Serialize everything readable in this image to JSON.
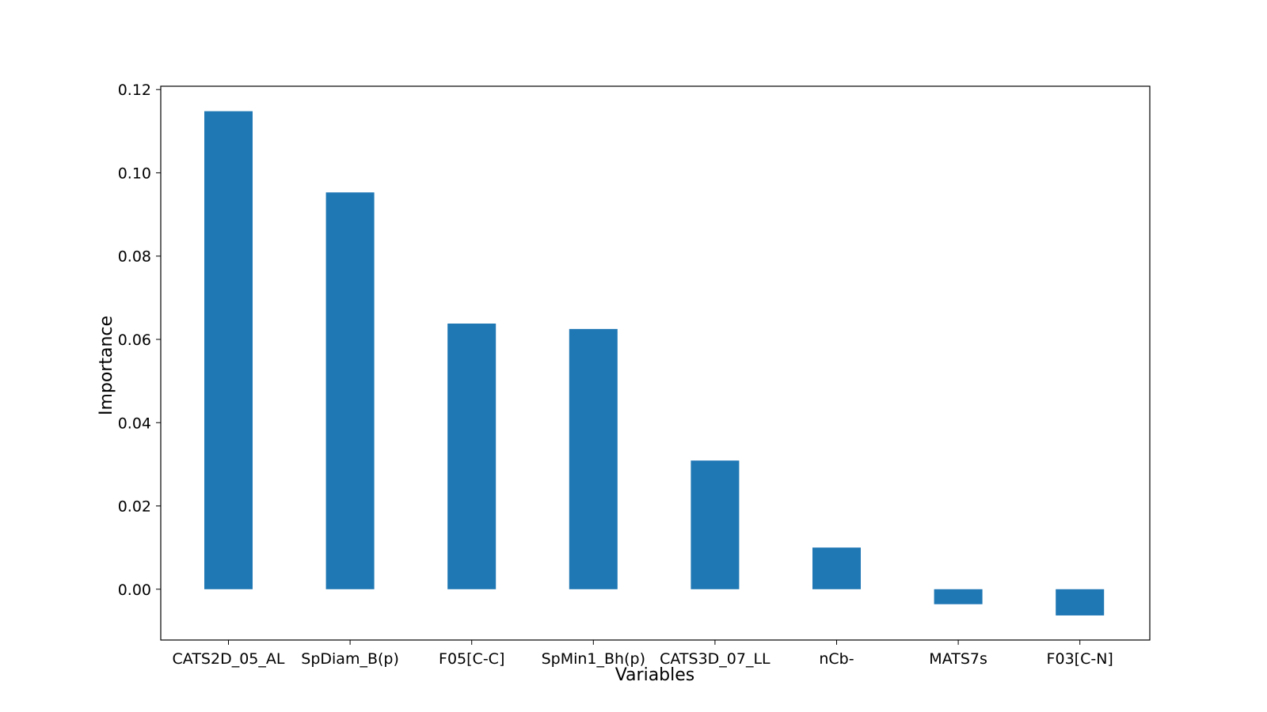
{
  "chart_data": {
    "type": "bar",
    "title": "",
    "xlabel": "Variables",
    "ylabel": "Importance",
    "categories": [
      "CATS2D_05_AL",
      "SpDiam_B(p)",
      "F05[C-C]",
      "SpMin1_Bh(p)",
      "CATS3D_07_LL",
      "nCb-",
      "MATS7s",
      "F03[C-N]"
    ],
    "values": [
      0.1148,
      0.0953,
      0.0638,
      0.0625,
      0.0309,
      0.01,
      -0.0036,
      -0.0063
    ],
    "ylim": [
      -0.0122,
      0.1208
    ],
    "yticks": [
      0.0,
      0.02,
      0.04,
      0.06,
      0.08,
      0.1,
      0.12
    ],
    "ytick_labels": [
      "0.00",
      "0.02",
      "0.04",
      "0.06",
      "0.08",
      "0.10",
      "0.12"
    ],
    "bar_color": "#1f77b4",
    "grid": false,
    "legend": "none"
  }
}
